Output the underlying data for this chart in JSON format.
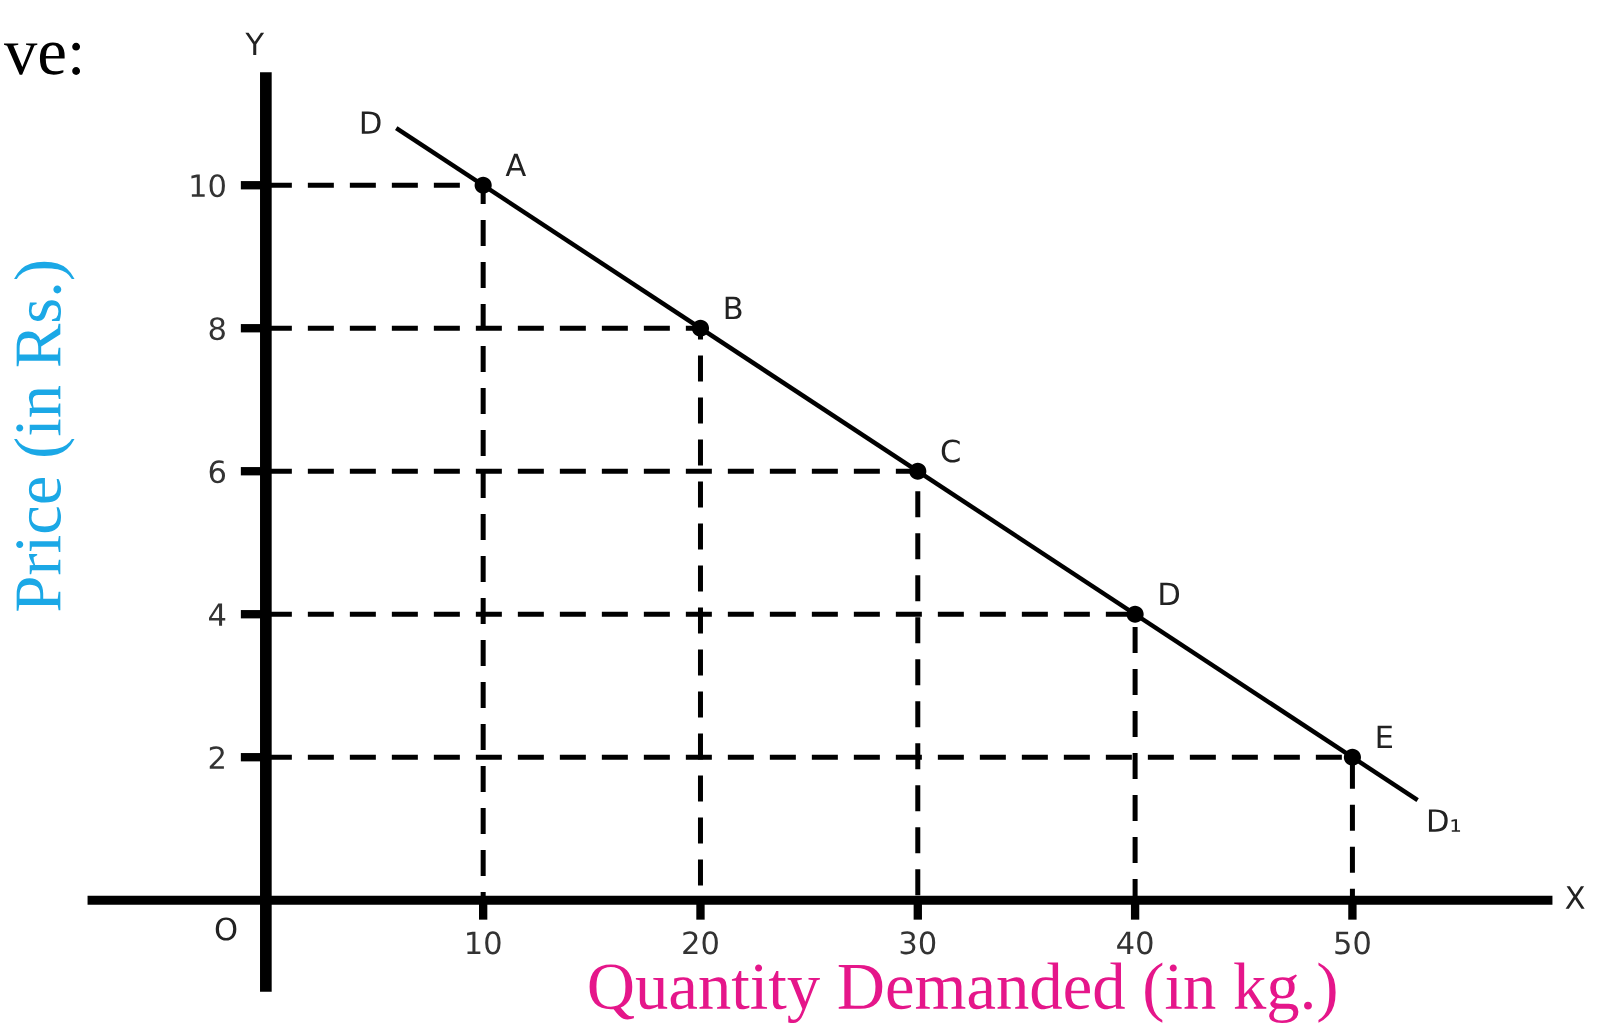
{
  "chart_data": {
    "type": "line",
    "xlabel": "Quantity Demanded (in kg.)",
    "ylabel": "Price (in Rs.)",
    "xlim": [
      -8,
      59
    ],
    "ylim": [
      -1.2,
      11.5
    ],
    "xticks": [
      10,
      20,
      30,
      40,
      50
    ],
    "yticks": [
      2,
      4,
      6,
      8,
      10
    ],
    "series": [
      {
        "line_style": "dashed",
        "color": "#000000",
        "x": [
          0,
          10,
          10
        ],
        "values": [
          10,
          10,
          0
        ]
      },
      {
        "line_style": "dashed",
        "color": "#000000",
        "x": [
          0,
          20,
          20
        ],
        "values": [
          8,
          8,
          0
        ]
      },
      {
        "line_style": "dashed",
        "color": "#000000",
        "x": [
          0,
          30,
          30
        ],
        "values": [
          6,
          6,
          0
        ]
      },
      {
        "line_style": "dashed",
        "color": "#000000",
        "x": [
          0,
          40,
          40
        ],
        "values": [
          4,
          4,
          0
        ]
      },
      {
        "line_style": "dashed",
        "color": "#000000",
        "x": [
          0,
          50,
          50
        ],
        "values": [
          2,
          2,
          0
        ]
      },
      {
        "line_style": "solid",
        "color": "#000000",
        "x": [
          6,
          53
        ],
        "values": [
          10.8,
          1.4
        ]
      },
      {
        "type": "scatter",
        "marker": "circle",
        "color": "#000000",
        "x": [
          10,
          20,
          30,
          40,
          50
        ],
        "values": [
          10,
          8,
          6,
          4,
          2
        ]
      }
    ],
    "annotations": [
      "ve:",
      "O",
      "Y",
      "X",
      {
        "text": "A",
        "x": 10,
        "y": 10
      },
      {
        "text": "B",
        "x": 20,
        "y": 8
      },
      {
        "text": "C",
        "x": 30,
        "y": 6
      },
      {
        "text": "D",
        "x": 40,
        "y": 4
      },
      {
        "text": "E",
        "x": 50,
        "y": 2
      },
      {
        "text": "D",
        "x": 6,
        "y": 10.8
      },
      {
        "text": "D₁",
        "x": 53,
        "y": 1.4
      }
    ]
  }
}
